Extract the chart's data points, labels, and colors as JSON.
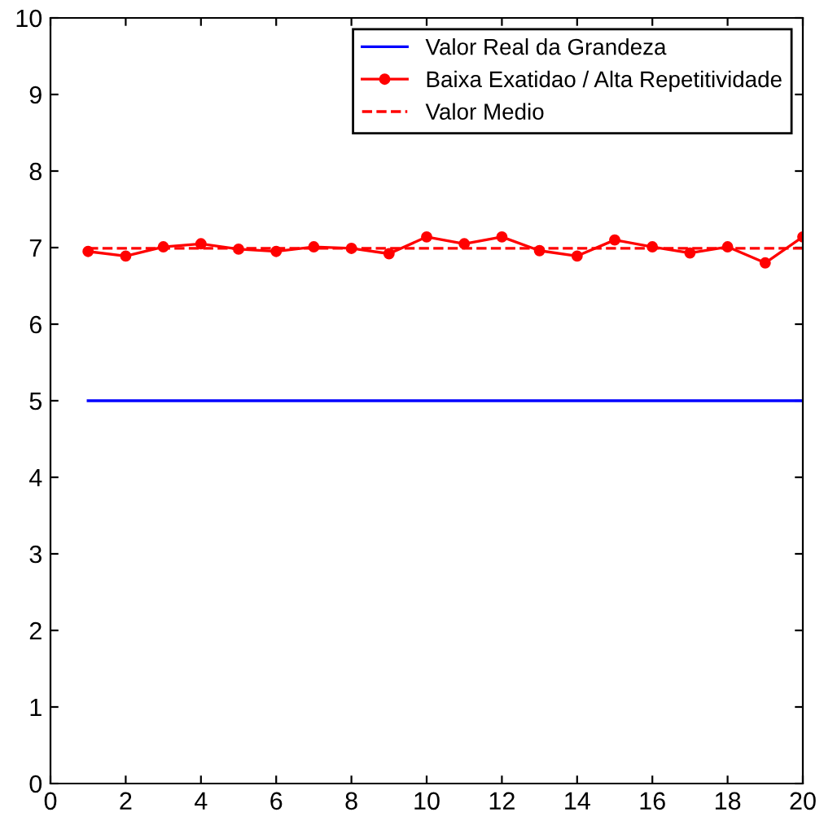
{
  "chart_data": {
    "type": "line",
    "x": [
      1,
      2,
      3,
      4,
      5,
      6,
      7,
      8,
      9,
      10,
      11,
      12,
      13,
      14,
      15,
      16,
      17,
      18,
      19,
      20
    ],
    "series": [
      {
        "name": "Valor Real da Grandeza",
        "color": "#0000ff",
        "values": [
          5,
          5,
          5,
          5,
          5,
          5,
          5,
          5,
          5,
          5,
          5,
          5,
          5,
          5,
          5,
          5,
          5,
          5,
          5,
          5
        ],
        "marker": "none",
        "line_style": "solid"
      },
      {
        "name": "Baixa Exatidao / Alta Repetitividade",
        "color": "#ff0000",
        "values": [
          6.95,
          6.89,
          7.01,
          7.05,
          6.98,
          6.95,
          7.01,
          6.99,
          6.92,
          7.14,
          7.05,
          7.14,
          6.96,
          6.89,
          7.1,
          7.01,
          6.93,
          7.01,
          6.8,
          7.14
        ],
        "marker": "circle",
        "line_style": "solid"
      },
      {
        "name": "Valor Medio",
        "color": "#ff0000",
        "values": [
          6.99,
          6.99,
          6.99,
          6.99,
          6.99,
          6.99,
          6.99,
          6.99,
          6.99,
          6.99,
          6.99,
          6.99,
          6.99,
          6.99,
          6.99,
          6.99,
          6.99,
          6.99,
          6.99,
          6.99
        ],
        "marker": "none",
        "line_style": "dashed"
      }
    ],
    "xlim": [
      0,
      20
    ],
    "ylim": [
      0,
      10
    ],
    "xticks": [
      0,
      2,
      4,
      6,
      8,
      10,
      12,
      14,
      16,
      18,
      20
    ],
    "yticks": [
      0,
      1,
      2,
      3,
      4,
      5,
      6,
      7,
      8,
      9,
      10
    ],
    "grid": false,
    "legend": "top right"
  }
}
